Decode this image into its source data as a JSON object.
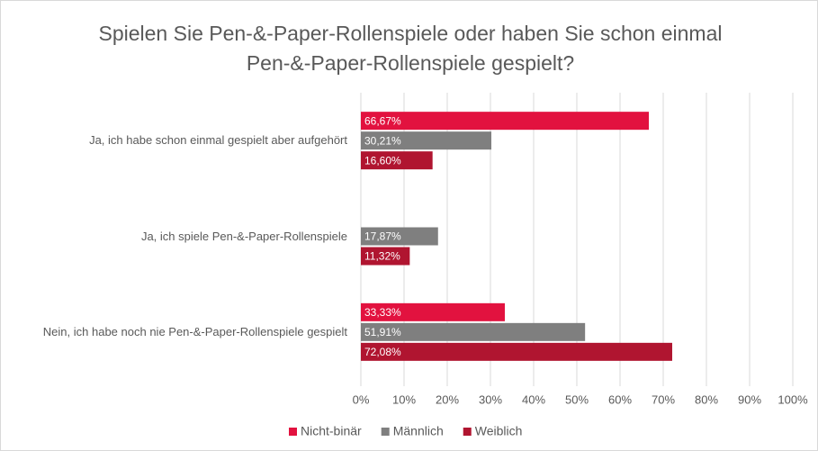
{
  "chart_data": {
    "type": "hbar",
    "title": "Spielen Sie Pen-&-Paper-Rollenspiele oder haben Sie schon einmal Pen-&-Paper-Rollenspiele gespielt?",
    "categories": [
      "Ja, ich habe schon einmal gespielt aber aufgehört",
      "Ja, ich spiele Pen-&-Paper-Rollenspiele",
      "Nein, ich habe noch nie Pen-&-Paper-Rollenspiele gespielt"
    ],
    "series": [
      {
        "name": "Nicht-binär",
        "color": "#e2123f",
        "values": [
          66.67,
          null,
          33.33
        ],
        "value_labels": [
          "66,67%",
          null,
          "33,33%"
        ]
      },
      {
        "name": "Männlich",
        "color": "#7f7f7f",
        "values": [
          30.21,
          17.87,
          51.91
        ],
        "value_labels": [
          "30,21%",
          "17,87%",
          "51,91%"
        ]
      },
      {
        "name": "Weiblich",
        "color": "#b01530",
        "values": [
          16.6,
          11.32,
          72.08
        ],
        "value_labels": [
          "16,60%",
          "11,32%",
          "72,08%"
        ]
      }
    ],
    "xlim": [
      0,
      100
    ],
    "xticks": [
      {
        "value": 0,
        "label": "0%"
      },
      {
        "value": 10,
        "label": "10%"
      },
      {
        "value": 20,
        "label": "20%"
      },
      {
        "value": 30,
        "label": "30%"
      },
      {
        "value": 40,
        "label": "40%"
      },
      {
        "value": 50,
        "label": "50%"
      },
      {
        "value": 60,
        "label": "60%"
      },
      {
        "value": 70,
        "label": "70%"
      },
      {
        "value": 80,
        "label": "80%"
      },
      {
        "value": 90,
        "label": "90%"
      },
      {
        "value": 100,
        "label": "100%"
      }
    ],
    "grid": true,
    "legend": "bottom"
  }
}
